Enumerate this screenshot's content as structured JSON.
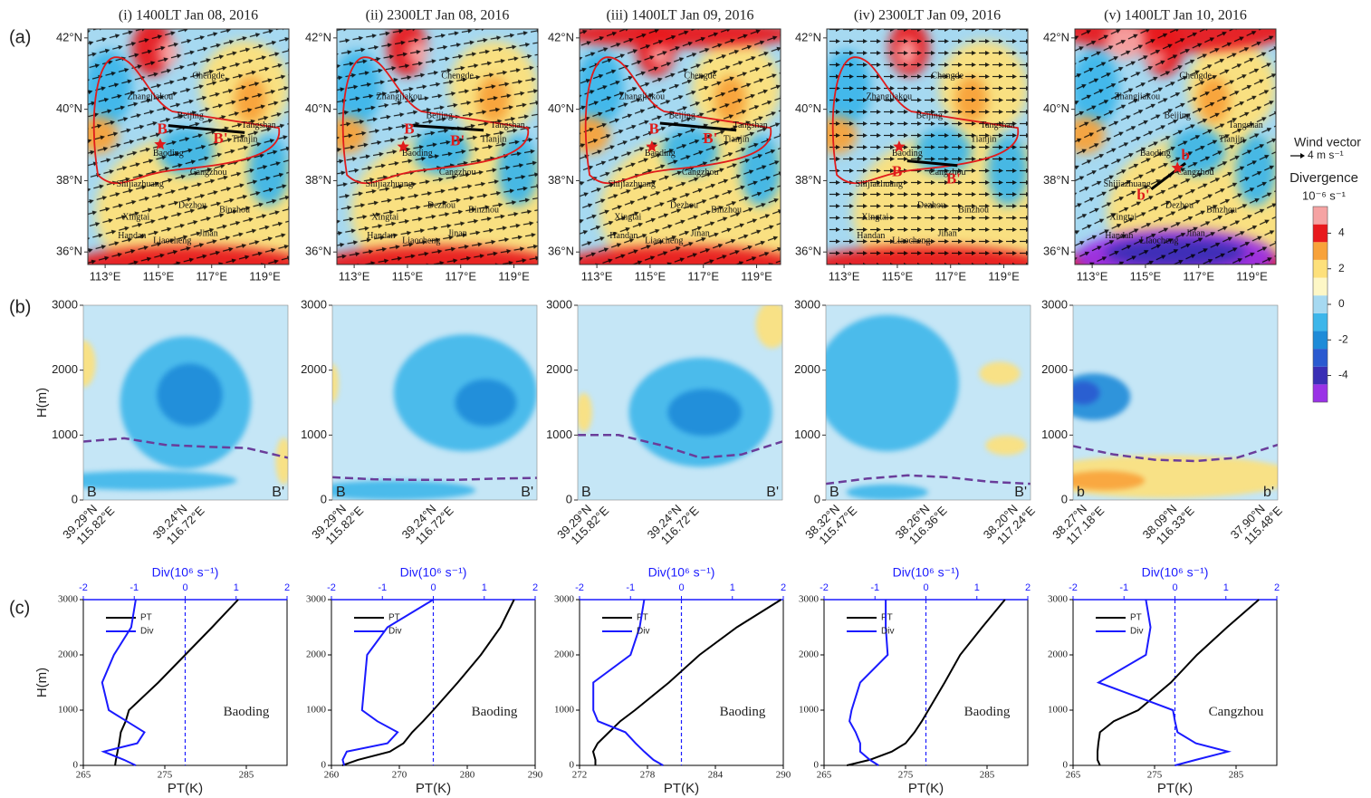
{
  "panel_labels": [
    "(a)",
    "(b)",
    "(c)"
  ],
  "map_axes": {
    "xlim": [
      112.35,
      119.9
    ],
    "ylim": [
      35.65,
      42.25
    ],
    "xticks": [
      {
        "value": 113,
        "label": "113°E"
      },
      {
        "value": 115,
        "label": "115°E"
      },
      {
        "value": 117,
        "label": "117°E"
      },
      {
        "value": 119,
        "label": "119°E"
      }
    ],
    "yticks": [
      {
        "value": 36,
        "label": "36°N"
      },
      {
        "value": 38,
        "label": "38°N"
      },
      {
        "value": 40,
        "label": "40°N"
      },
      {
        "value": 42,
        "label": "42°N"
      }
    ]
  },
  "cities": [
    "Chengde",
    "Zhangjiakou",
    "Beijing",
    "Tangshan",
    "Tianjin",
    "Baoding",
    "Cangzhou",
    "Shijiazhuang",
    "Dezhou",
    "Binzhou",
    "Xingtai",
    "Handan",
    "Liaocheng",
    "Jinan"
  ],
  "maps": [
    {
      "title": "(i) 1400LT Jan 08, 2016",
      "section_labels": [
        "B",
        "B'"
      ]
    },
    {
      "title": "(ii) 2300LT Jan 08, 2016",
      "section_labels": [
        "B",
        "B'"
      ]
    },
    {
      "title": "(iii) 1400LT Jan 09, 2016",
      "section_labels": [
        "B",
        "B'"
      ]
    },
    {
      "title": "(iv) 2300LT Jan 09, 2016",
      "section_labels": [
        "B",
        "B'"
      ]
    },
    {
      "title": "(v) 1400LT Jan 10, 2016",
      "section_labels": [
        "b",
        "b'"
      ]
    }
  ],
  "colorbar": {
    "title_top": "Wind vector",
    "vector_label": "4 m s⁻¹",
    "title": "Divergence",
    "unit": "10⁻⁶ s⁻¹",
    "lim": [
      -5.5,
      5.5
    ],
    "ticks": [
      -4,
      -2,
      0,
      2,
      4
    ],
    "colors": [
      "#9a32e6",
      "#3a2eb5",
      "#2a5ad0",
      "#1e8bd8",
      "#3db6ea",
      "#a6d9f1",
      "#fdf7c6",
      "#fde07a",
      "#f8a23a",
      "#e8191d",
      "#f5a3a3"
    ]
  },
  "sections": [
    {
      "ylabel": "H(m)",
      "ylim": [
        0,
        3000
      ],
      "yticks": [
        0,
        1000,
        2000,
        3000
      ],
      "ends": [
        "B",
        "B'"
      ],
      "xticks": [
        [
          "39.29°N",
          "115.82°E"
        ],
        [
          "39.24°N",
          "116.72°E"
        ]
      ],
      "boundary_layer": [
        900,
        950,
        850,
        820,
        800,
        650
      ]
    },
    {
      "ylim": [
        0,
        3000
      ],
      "yticks": [
        0,
        1000,
        2000,
        3000
      ],
      "ends": [
        "B",
        "B'"
      ],
      "xticks": [
        [
          "39.29°N",
          "115.82°E"
        ],
        [
          "39.24°N",
          "116.72°E"
        ]
      ],
      "boundary_layer": [
        350,
        320,
        310,
        310,
        330,
        340
      ]
    },
    {
      "ylim": [
        0,
        3000
      ],
      "yticks": [
        0,
        1000,
        2000,
        3000
      ],
      "ends": [
        "B",
        "B'"
      ],
      "xticks": [
        [
          "39.29°N",
          "115.82°E"
        ],
        [
          "39.24°N",
          "116.72°E"
        ]
      ],
      "boundary_layer": [
        1000,
        1000,
        850,
        650,
        700,
        900
      ]
    },
    {
      "ylim": [
        0,
        3000
      ],
      "yticks": [
        0,
        1000,
        2000,
        3000
      ],
      "ends": [
        "B",
        "B'"
      ],
      "xticks": [
        [
          "38.32°N",
          "115.47°E"
        ],
        [
          "38.26°N",
          "116.36°E"
        ],
        [
          "38.20°N",
          "117.24°E"
        ]
      ],
      "boundary_layer": [
        250,
        330,
        380,
        350,
        280,
        250
      ]
    },
    {
      "ylim": [
        0,
        3000
      ],
      "yticks": [
        0,
        1000,
        2000,
        3000
      ],
      "ends": [
        "b",
        "b'"
      ],
      "xticks": [
        [
          "38.27°N",
          "117.18°E"
        ],
        [
          "38.09°N",
          "116.33°E"
        ],
        [
          "37.90°N",
          "115.48°E"
        ]
      ],
      "boundary_layer": [
        830,
        700,
        620,
        600,
        650,
        850
      ]
    }
  ],
  "chart_data": [
    {
      "type": "profile",
      "ylabel": "H(m)",
      "xlabel": "PT(K)",
      "x2label": "Div(10⁶ s⁻¹)",
      "annotation": "Baoding",
      "y": [
        0,
        100,
        250,
        400,
        600,
        800,
        1000,
        1500,
        2000,
        2500,
        3000
      ],
      "ylim": [
        0,
        3000
      ],
      "yticks": [
        0,
        1000,
        2000,
        3000
      ],
      "xlim": [
        265,
        290
      ],
      "xticks": [
        265,
        275,
        285
      ],
      "x2lim": [
        -2,
        2
      ],
      "x2ticks": [
        -2,
        -1,
        0,
        1,
        2
      ],
      "series": [
        {
          "name": "PT",
          "color": "#000000",
          "values": [
            268.9,
            269.0,
            269.2,
            269.4,
            269.6,
            270.2,
            270.6,
            274.2,
            277.5,
            280.8,
            284.0
          ]
        },
        {
          "name": "Div",
          "color": "#1a1aff",
          "axis": "x2",
          "values": [
            -0.97,
            -1.2,
            -1.6,
            -0.94,
            -0.8,
            -1.15,
            -1.5,
            -1.63,
            -1.4,
            -1.06,
            -0.97
          ]
        }
      ]
    },
    {
      "type": "profile",
      "xlabel": "PT(K)",
      "x2label": "Div(10⁶ s⁻¹)",
      "annotation": "Baoding",
      "y": [
        0,
        100,
        250,
        400,
        600,
        800,
        1000,
        1500,
        2000,
        2500,
        3000
      ],
      "ylim": [
        0,
        3000
      ],
      "yticks": [
        0,
        1000,
        2000,
        3000
      ],
      "xlim": [
        260,
        290
      ],
      "xticks": [
        260,
        270,
        280,
        290
      ],
      "x2lim": [
        -2,
        2
      ],
      "x2ticks": [
        -2,
        -1,
        0,
        1,
        2
      ],
      "series": [
        {
          "name": "PT",
          "color": "#000000",
          "values": [
            261.6,
            263.9,
            268.6,
            270.6,
            271.9,
            273.5,
            275.0,
            278.6,
            282.0,
            284.9,
            286.9
          ]
        },
        {
          "name": "Div",
          "color": "#1a1aff",
          "axis": "x2",
          "values": [
            -1.75,
            -1.78,
            -1.7,
            -0.9,
            -0.7,
            -1.1,
            -1.4,
            -1.35,
            -1.3,
            -0.9,
            0
          ]
        }
      ]
    },
    {
      "type": "profile",
      "xlabel": "PT(K)",
      "x2label": "Div(10⁶ s⁻¹)",
      "annotation": "Baoding",
      "y": [
        0,
        100,
        250,
        400,
        600,
        800,
        1000,
        1500,
        2000,
        2500,
        3000
      ],
      "ylim": [
        0,
        3000
      ],
      "yticks": [
        0,
        1000,
        2000,
        3000
      ],
      "xlim": [
        272,
        290
      ],
      "xticks": [
        272,
        278,
        284,
        290
      ],
      "x2lim": [
        -2,
        2
      ],
      "x2ticks": [
        -2,
        -1,
        0,
        1,
        2
      ],
      "series": [
        {
          "name": "PT",
          "color": "#000000",
          "values": [
            273.4,
            273.4,
            273.2,
            273.6,
            274.6,
            275.6,
            276.9,
            279.9,
            282.6,
            285.9,
            289.8
          ]
        },
        {
          "name": "Div",
          "color": "#1a1aff",
          "axis": "x2",
          "values": [
            -0.36,
            -0.55,
            -0.73,
            -0.9,
            -1.1,
            -1.64,
            -1.73,
            -1.73,
            -1.0,
            -0.82,
            -0.73
          ]
        }
      ]
    },
    {
      "type": "profile",
      "xlabel": "PT(K)",
      "x2label": "Div(10⁶ s⁻¹)",
      "annotation": "Baoding",
      "y": [
        0,
        100,
        250,
        400,
        600,
        800,
        1000,
        1500,
        2000,
        2500,
        3000
      ],
      "ylim": [
        0,
        3000
      ],
      "yticks": [
        0,
        1000,
        2000,
        3000
      ],
      "xlim": [
        265,
        290
      ],
      "xticks": [
        265,
        275,
        285
      ],
      "x2lim": [
        -2,
        2
      ],
      "x2ticks": [
        -2,
        -1,
        0,
        1,
        2
      ],
      "series": [
        {
          "name": "PT",
          "color": "#000000",
          "values": [
            267.8,
            270.6,
            273.3,
            275.0,
            276.1,
            277.0,
            277.8,
            279.8,
            281.7,
            284.4,
            287.2
          ]
        },
        {
          "name": "Div",
          "color": "#1a1aff",
          "axis": "x2",
          "values": [
            -0.93,
            -1.1,
            -1.29,
            -1.29,
            -1.38,
            -1.5,
            -1.46,
            -1.29,
            -0.75,
            -0.79,
            -0.79
          ]
        }
      ]
    },
    {
      "type": "profile",
      "xlabel": "PT(K)",
      "x2label": "Div(10⁶ s⁻¹)",
      "annotation": "Cangzhou",
      "y": [
        0,
        100,
        250,
        400,
        600,
        800,
        1000,
        1500,
        2000,
        2500,
        3000
      ],
      "ylim": [
        0,
        3000
      ],
      "yticks": [
        0,
        1000,
        2000,
        3000
      ],
      "xlim": [
        265,
        290
      ],
      "xticks": [
        265,
        275,
        285
      ],
      "x2lim": [
        -2,
        2
      ],
      "x2ticks": [
        -2,
        -1,
        0,
        1,
        2
      ],
      "series": [
        {
          "name": "PT",
          "color": "#000000",
          "values": [
            268.3,
            268.0,
            268.0,
            268.1,
            268.3,
            270.0,
            273.0,
            277.0,
            280.2,
            283.9,
            287.8
          ]
        },
        {
          "name": "Div",
          "color": "#1a1aff",
          "axis": "x2",
          "values": [
            0,
            0.41,
            1.04,
            0.41,
            0.05,
            0,
            -0.04,
            -1.5,
            -0.57,
            -0.48,
            -0.57
          ]
        }
      ]
    }
  ]
}
